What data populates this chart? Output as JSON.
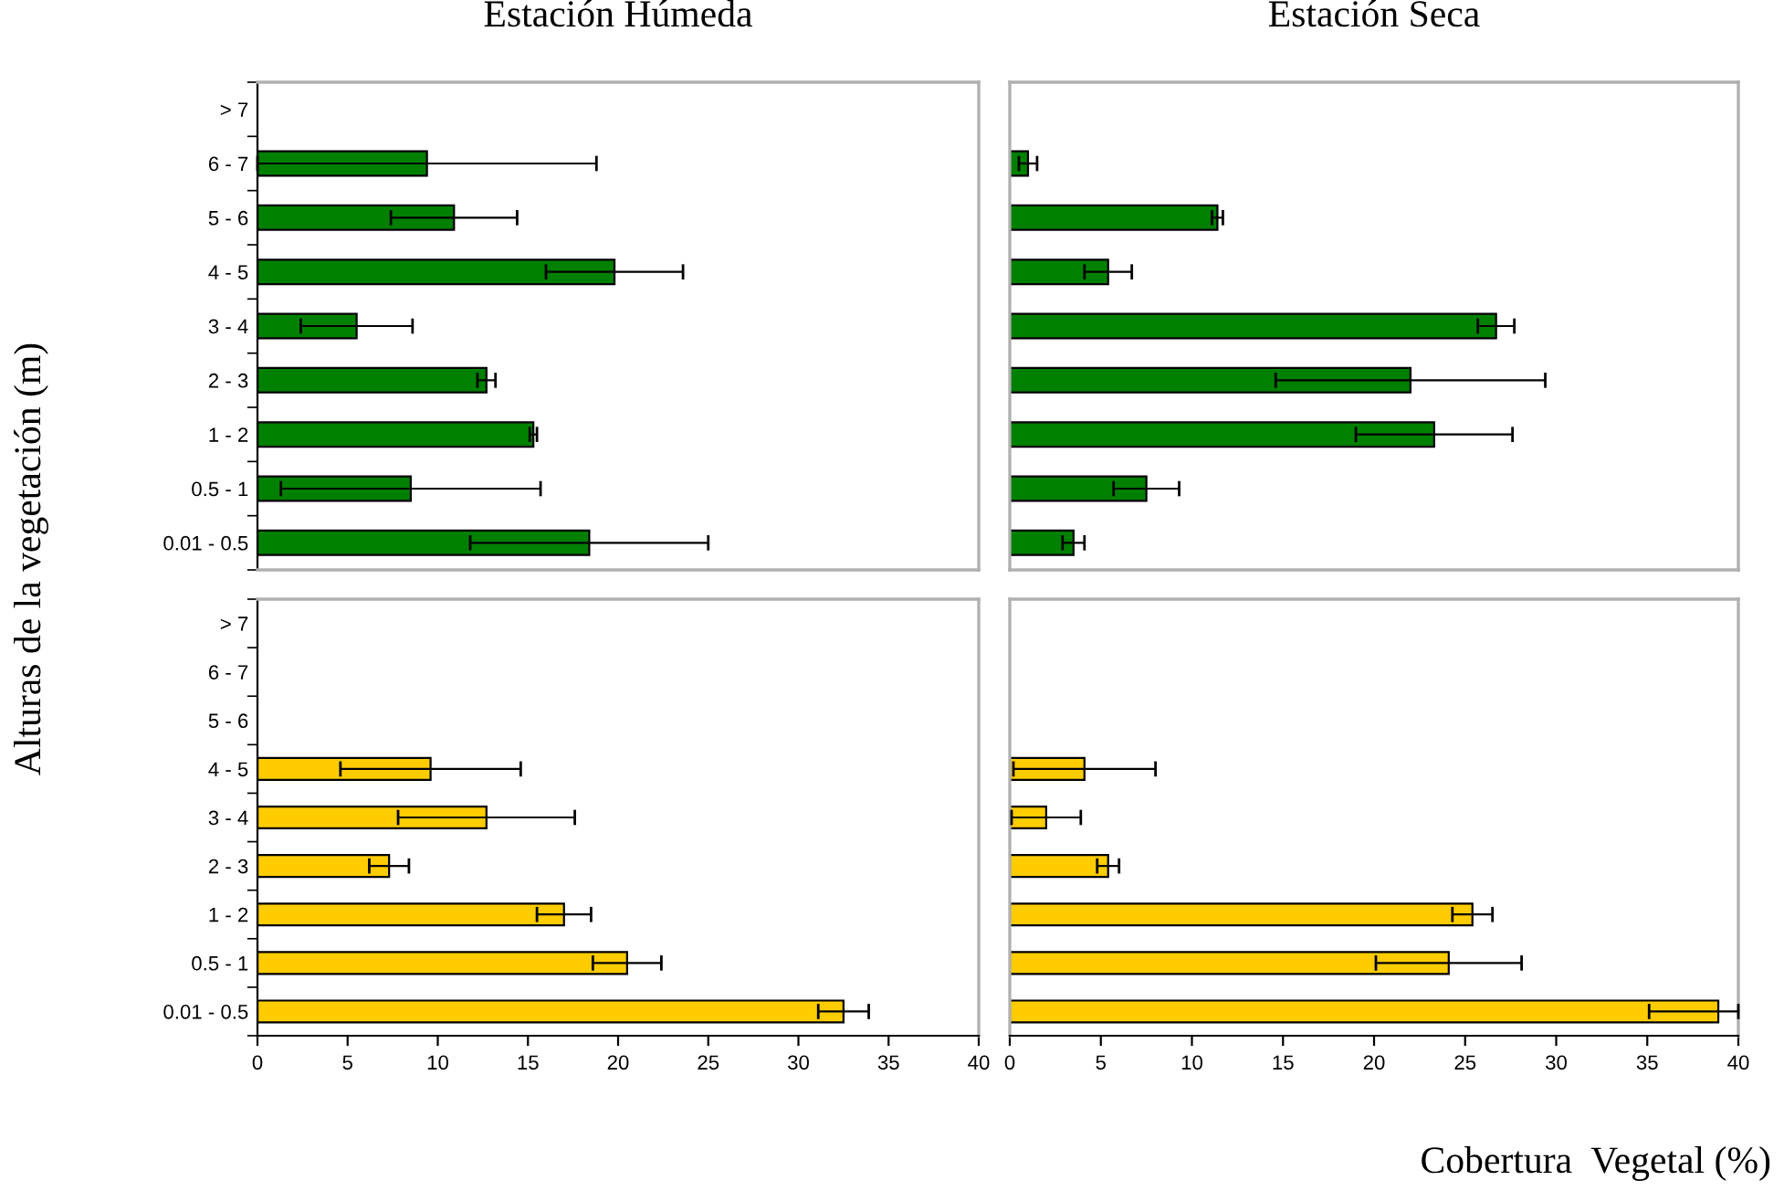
{
  "chart_data": [
    {
      "type": "bar",
      "orientation": "horizontal",
      "title": "Estación Húmeda",
      "ylabel": "Alturas de la vegetación (m)",
      "categories": [
        "> 7",
        "6 - 7",
        "5 - 6",
        "4 - 5",
        "3 - 4",
        "2 - 3",
        "1 - 2",
        "0.5 - 1",
        "0.01 - 0.5"
      ],
      "color": "#008000",
      "values": [
        null,
        9.4,
        10.9,
        19.8,
        5.5,
        12.7,
        15.3,
        8.5,
        18.4
      ],
      "errors": [
        null,
        9.4,
        3.5,
        3.8,
        3.1,
        0.5,
        0.2,
        7.2,
        6.6
      ],
      "xlim": [
        0,
        40
      ],
      "tick_labels": "y",
      "grid": false,
      "legend": false
    },
    {
      "type": "bar",
      "orientation": "horizontal",
      "title": "Estación Seca",
      "categories": [
        null,
        null,
        null,
        null,
        null,
        null,
        null,
        null,
        null
      ],
      "color": "#008000",
      "values": [
        null,
        1.0,
        11.4,
        5.4,
        26.7,
        22.0,
        23.3,
        7.5,
        3.5
      ],
      "errors": [
        null,
        0.5,
        0.3,
        1.3,
        1.0,
        7.4,
        4.3,
        1.8,
        0.6
      ],
      "xlim": [
        0,
        40
      ],
      "tick_labels": false,
      "grid": false,
      "legend": false
    },
    {
      "type": "bar",
      "orientation": "horizontal",
      "categories": [
        "> 7",
        "6 - 7",
        "5 - 6",
        "4 - 5",
        "3 - 4",
        "2 - 3",
        "1 - 2",
        "0.5 - 1",
        "0.01 - 0.5"
      ],
      "color": "#ffcc00",
      "values": [
        null,
        null,
        null,
        9.6,
        12.7,
        7.3,
        17.0,
        20.5,
        32.5
      ],
      "errors": [
        null,
        null,
        null,
        5.0,
        4.9,
        1.1,
        1.5,
        1.9,
        1.4
      ],
      "xlim": [
        0,
        40
      ],
      "xticks": [
        0,
        5,
        10,
        15,
        20,
        25,
        30,
        35,
        40
      ],
      "grid": false,
      "legend": false
    },
    {
      "type": "bar",
      "orientation": "horizontal",
      "xlabel": "Cobertura  Vegetal (%)",
      "categories": [
        null,
        null,
        null,
        null,
        null,
        null,
        null,
        null,
        null
      ],
      "color": "#ffcc00",
      "values": [
        null,
        null,
        null,
        4.1,
        2.0,
        5.4,
        25.4,
        24.1,
        38.9
      ],
      "errors": [
        null,
        null,
        null,
        3.9,
        1.9,
        0.6,
        1.1,
        4.0,
        [
          35.1,
          40
        ]
      ],
      "xlim": [
        0,
        40
      ],
      "xticks": [
        0,
        5,
        10,
        15,
        20,
        25,
        30,
        35,
        40
      ],
      "tick_labels": "x",
      "grid": false,
      "legend": false
    }
  ]
}
